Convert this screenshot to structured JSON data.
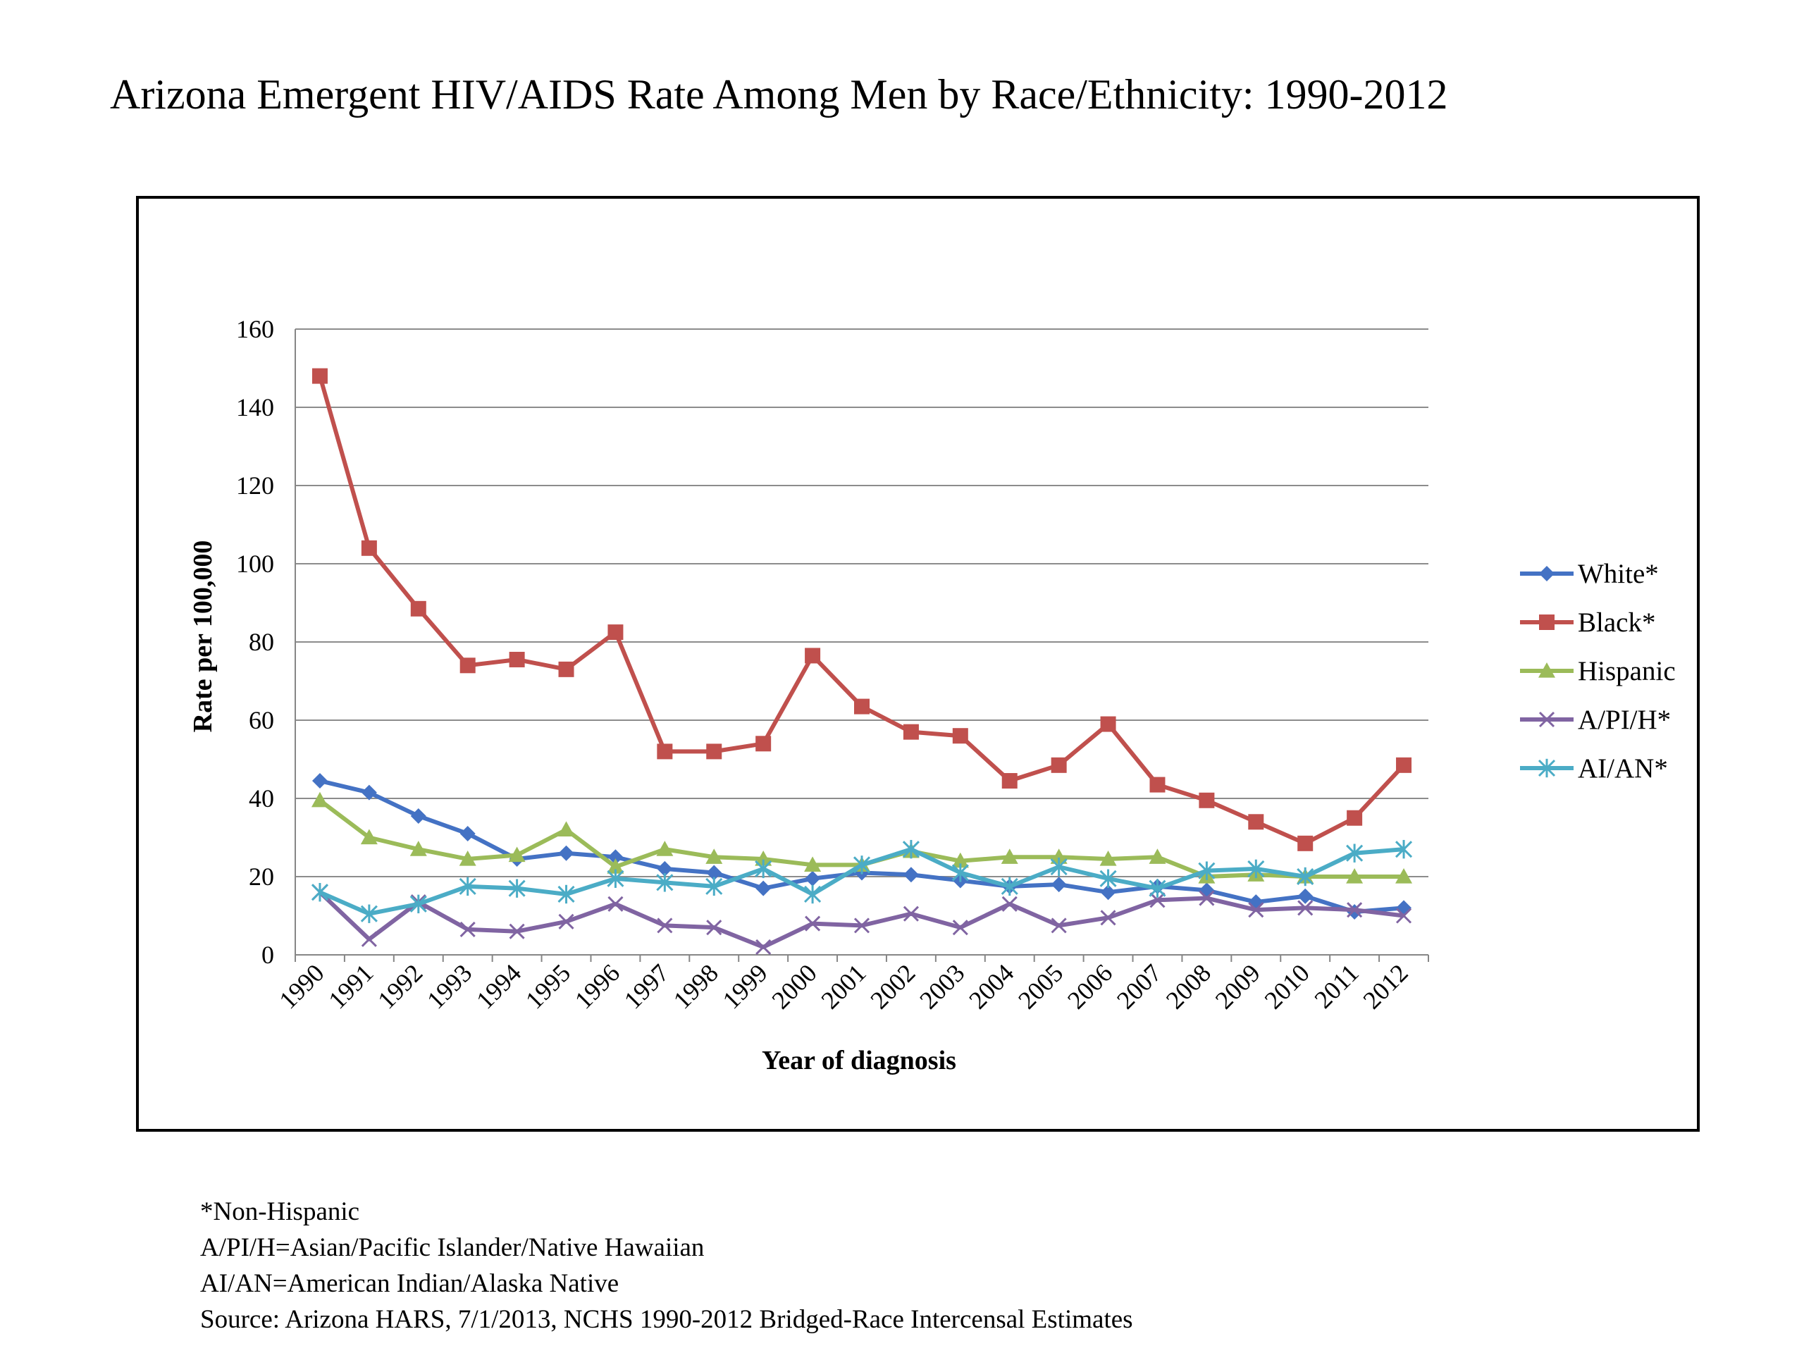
{
  "page": {
    "title": "Arizona Emergent HIV/AIDS Rate Among Men by Race/Ethnicity: 1990-2012"
  },
  "notes": [
    "*Non-Hispanic",
    "A/PI/H=Asian/Pacific Islander/Native Hawaiian",
    "AI/AN=American Indian/Alaska Native",
    "Source: Arizona HARS, 7/1/2013, NCHS 1990-2012 Bridged-Race Intercensal Estimates"
  ],
  "chart_data": {
    "type": "line",
    "title": "",
    "xlabel": "Year of diagnosis",
    "ylabel": "Rate per 100,000",
    "ylim": [
      0,
      160
    ],
    "yticks": [
      0,
      20,
      40,
      60,
      80,
      100,
      120,
      140,
      160
    ],
    "grid": true,
    "legend_position": "right",
    "categories": [
      "1990",
      "1991",
      "1992",
      "1993",
      "1994",
      "1995",
      "1996",
      "1997",
      "1998",
      "1999",
      "2000",
      "2001",
      "2002",
      "2003",
      "2004",
      "2005",
      "2006",
      "2007",
      "2008",
      "2009",
      "2010",
      "2011",
      "2012"
    ],
    "series": [
      {
        "name": "White*",
        "color": "#4472c4",
        "marker": "diamond",
        "values": [
          44.5,
          41.5,
          35.5,
          31,
          24.5,
          26,
          25,
          22,
          21,
          17,
          19.5,
          21,
          20.5,
          19,
          17.5,
          18,
          16,
          17.5,
          16.5,
          13.5,
          15,
          11,
          12
        ]
      },
      {
        "name": "Black*",
        "color": "#c0504d",
        "marker": "square",
        "values": [
          148,
          104,
          88.5,
          74,
          75.5,
          73,
          82.5,
          52,
          52,
          54,
          76.5,
          63.5,
          57,
          56,
          44.5,
          48.5,
          59,
          43.5,
          39.5,
          34,
          28.5,
          35,
          48.5
        ]
      },
      {
        "name": "Hispanic",
        "color": "#9bbb59",
        "marker": "triangle",
        "values": [
          39.5,
          30,
          27,
          24.5,
          25.5,
          32,
          22.5,
          27,
          25,
          24.5,
          23,
          23,
          26.5,
          24,
          25,
          25,
          24.5,
          25,
          20,
          20.5,
          20,
          20,
          20
        ]
      },
      {
        "name": "A/PI/H*",
        "color": "#8064a2",
        "marker": "x",
        "values": [
          16,
          4,
          13.5,
          6.5,
          6,
          8.5,
          13,
          7.5,
          7,
          2,
          8,
          7.5,
          10.5,
          7,
          13,
          7.5,
          9.5,
          14,
          14.5,
          11.5,
          12,
          11.5,
          10
        ]
      },
      {
        "name": "AI/AN*",
        "color": "#4bacc6",
        "marker": "star",
        "values": [
          16,
          10.5,
          13,
          17.5,
          17,
          15.5,
          19.5,
          18.5,
          17.5,
          22,
          15.5,
          23,
          27,
          21,
          17.5,
          22.5,
          19.5,
          17,
          21.5,
          22,
          20,
          26,
          27
        ]
      }
    ]
  }
}
